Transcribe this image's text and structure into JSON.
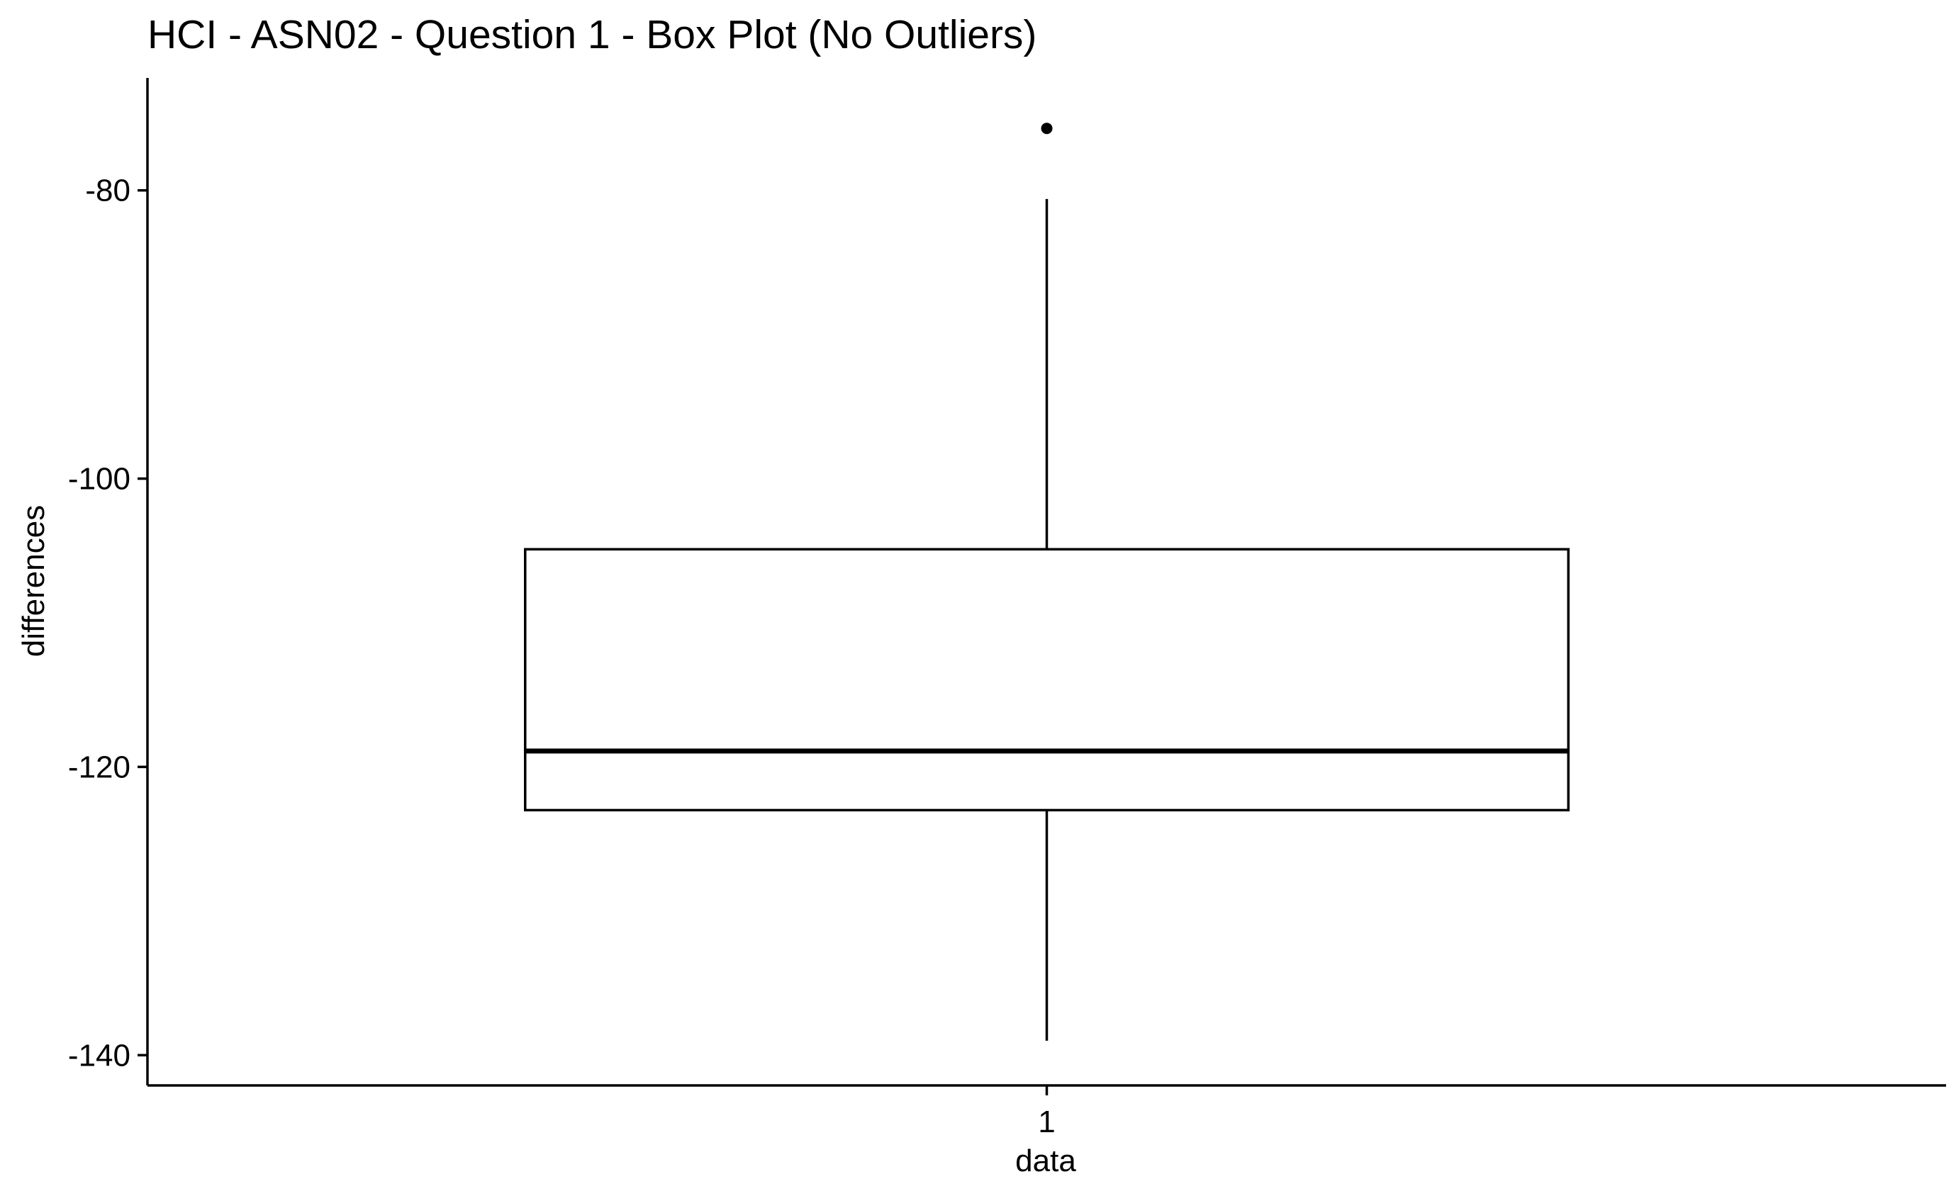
{
  "chart_data": {
    "type": "box",
    "title": "HCI - ASN02 - Question 1 - Box Plot (No Outliers)",
    "xlabel": "data",
    "ylabel": "differences",
    "categories": [
      "1"
    ],
    "boxes": [
      {
        "category": "1",
        "whisker_low": -139.0,
        "q1": -123.0,
        "median": -118.9,
        "q3": -104.9,
        "whisker_high": -80.6,
        "outliers": [
          -75.7
        ]
      }
    ],
    "ylim": [
      -142.1,
      -72.2
    ],
    "yticks": [
      -140,
      -120,
      -100,
      -80
    ],
    "yticklabels": [
      "-140",
      "-120",
      "-100",
      "-80"
    ],
    "grid": false,
    "legend": "none",
    "colors": {
      "line": "#000000",
      "fill": "#ffffff",
      "background": "#ffffff"
    }
  }
}
